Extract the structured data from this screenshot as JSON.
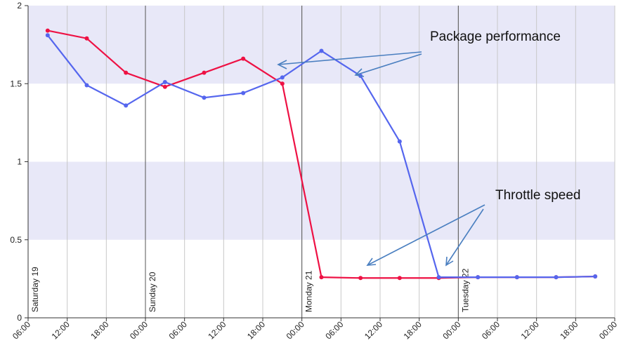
{
  "chart_data": {
    "type": "line",
    "x": [
      3,
      9,
      15,
      21,
      27,
      33,
      39,
      45,
      51,
      57,
      63,
      69,
      75,
      81,
      87
    ],
    "xlim": [
      0,
      90
    ],
    "xticks": [
      {
        "value": 0,
        "label": "06:00"
      },
      {
        "value": 6,
        "label": "12:00"
      },
      {
        "value": 12,
        "label": "18:00"
      },
      {
        "value": 18,
        "label": "00:00"
      },
      {
        "value": 24,
        "label": "06:00"
      },
      {
        "value": 30,
        "label": "12:00"
      },
      {
        "value": 36,
        "label": "18:00"
      },
      {
        "value": 42,
        "label": "00:00"
      },
      {
        "value": 48,
        "label": "06:00"
      },
      {
        "value": 54,
        "label": "12:00"
      },
      {
        "value": 60,
        "label": "18:00"
      },
      {
        "value": 66,
        "label": "00:00"
      },
      {
        "value": 72,
        "label": "06:00"
      },
      {
        "value": 78,
        "label": "12:00"
      },
      {
        "value": 84,
        "label": "18:00"
      },
      {
        "value": 90,
        "label": "00:00"
      }
    ],
    "ylim": [
      0,
      2
    ],
    "yticks": [
      0,
      0.5,
      1,
      1.5,
      2
    ],
    "grid": true,
    "alternate_bands": true,
    "day_labels": [
      {
        "text": "Saturday 19",
        "x": 0
      },
      {
        "text": "Sunday 20",
        "x": 18
      },
      {
        "text": "Monday 21",
        "x": 42
      },
      {
        "text": "Tuesday 22",
        "x": 66
      }
    ],
    "series": [
      {
        "color": "#ee1144",
        "values": [
          1.84,
          1.79,
          1.57,
          1.48,
          1.57,
          1.66,
          1.5,
          0.26,
          0.255,
          0.255,
          0.255,
          0.26,
          0.26,
          0.26,
          0.265
        ]
      },
      {
        "color": "#5566ee",
        "values": [
          1.81,
          1.49,
          1.36,
          1.51,
          1.41,
          1.44,
          1.54,
          1.71,
          1.55,
          1.13,
          0.26,
          0.26,
          0.26,
          0.26,
          0.265
        ]
      }
    ],
    "annotations": [
      "Package performance",
      "Throttle speed"
    ]
  }
}
